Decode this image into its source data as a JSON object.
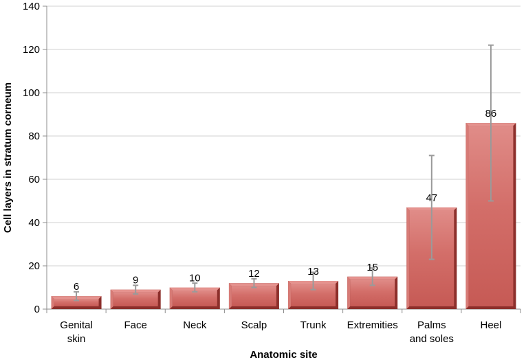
{
  "chart_data": {
    "type": "bar",
    "xlabel": "Anatomic site",
    "ylabel": "Cell layers in stratum corneum",
    "ylim": [
      0,
      140
    ],
    "yticks": [
      0,
      20,
      40,
      60,
      80,
      100,
      120,
      140
    ],
    "categories": [
      [
        "Genital",
        "skin"
      ],
      [
        "Face"
      ],
      [
        "Neck"
      ],
      [
        "Scalp"
      ],
      [
        "Trunk"
      ],
      [
        "Extremities"
      ],
      [
        "Palms",
        "and soles"
      ],
      [
        "Heel"
      ]
    ],
    "values": [
      6,
      9,
      10,
      12,
      13,
      15,
      47,
      86
    ],
    "data_labels": [
      "6",
      "9",
      "10",
      "12",
      "13",
      "15",
      "47",
      "86"
    ],
    "error_low": [
      4,
      7,
      8,
      10,
      9,
      11,
      23,
      50
    ],
    "error_high": [
      8,
      11,
      12,
      14,
      17,
      19,
      71,
      122
    ],
    "grid": true,
    "bar_color": "#c0504d",
    "bar_color_light": "#e5938f",
    "bar_color_dark": "#8c2f2b",
    "error_bar_color": "#9a9a9a",
    "grid_color": "#d0d0d0"
  }
}
